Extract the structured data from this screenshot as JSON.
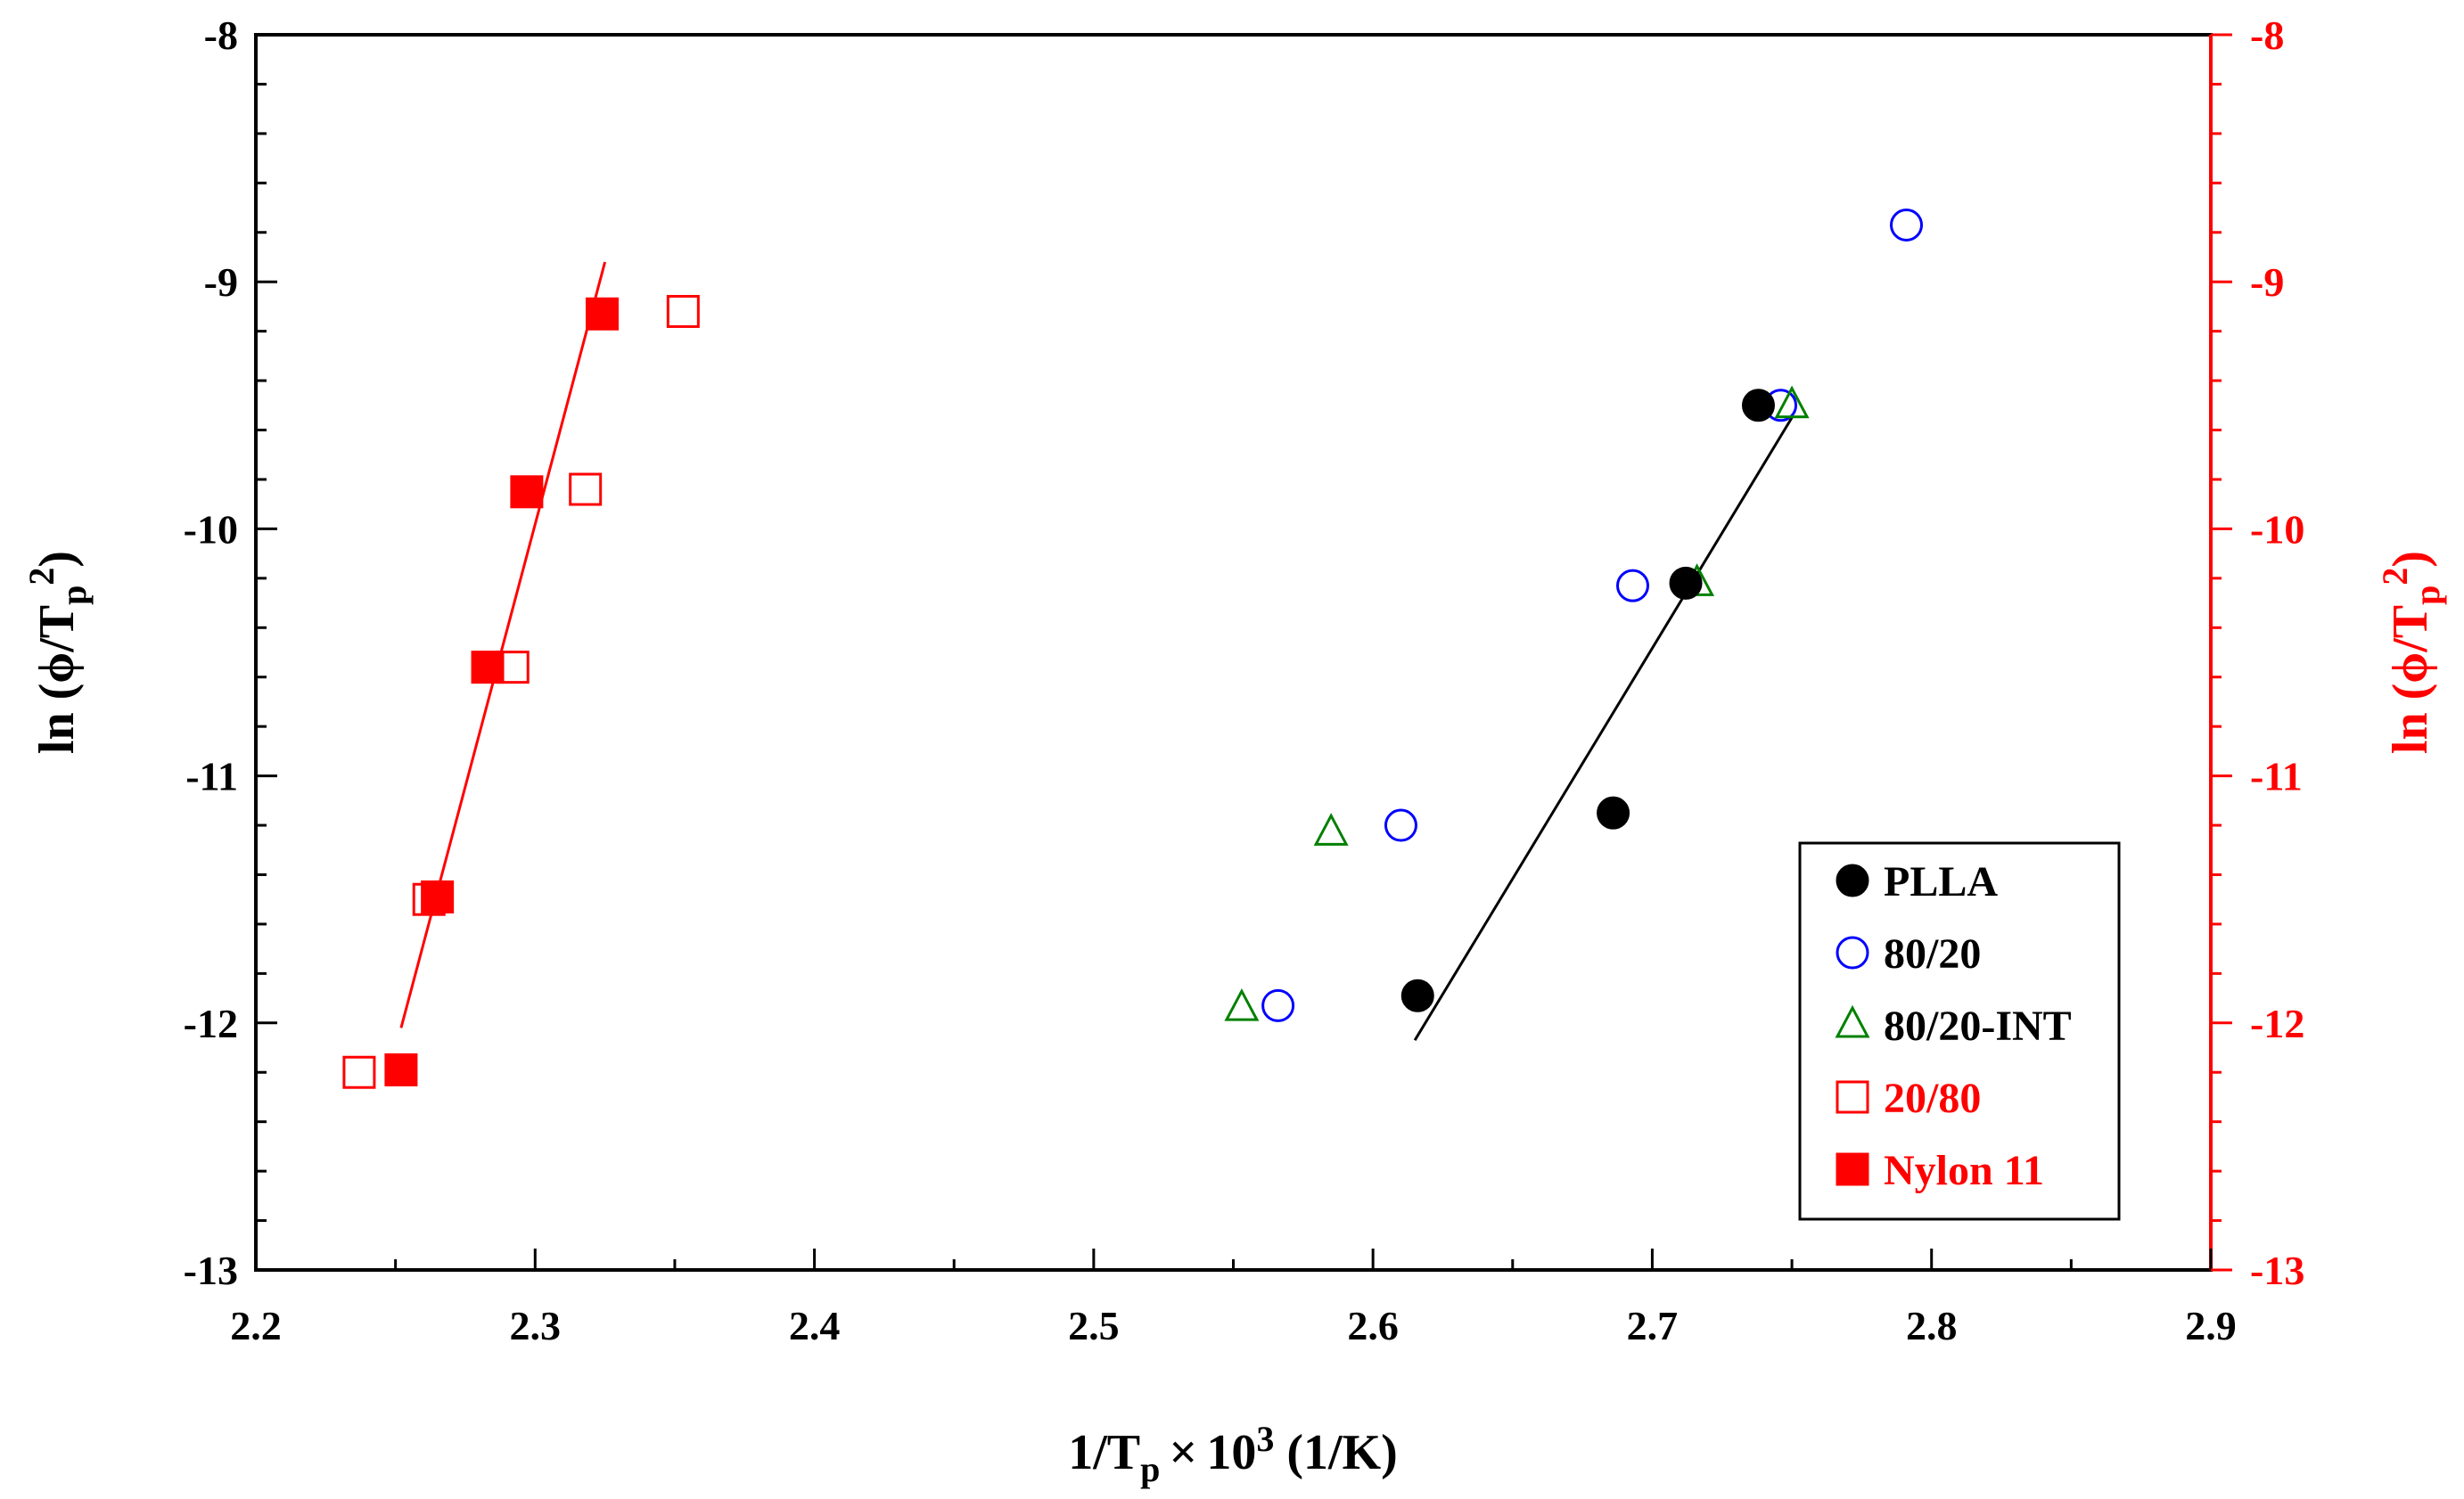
{
  "chart_data": {
    "type": "scatter",
    "title": "",
    "xlabel": "1/Tₚ × 10³ (1/K)",
    "xlabel_parts": {
      "main": "1/T",
      "sub": "p",
      "times": "×",
      "base": "10",
      "sup": "3",
      "unit": "(1/K)"
    },
    "ylabel_left": "ln (ϕ/Tₚ²)",
    "ylabel_right": "ln (ϕ/Tₚ²)",
    "ylabel_parts": {
      "pre": "ln (ϕ/T",
      "sub": "p",
      "sup": "2",
      "post": ")"
    },
    "xlim": [
      2.2,
      2.9
    ],
    "ylim": [
      -13,
      -8
    ],
    "x_ticks": [
      2.2,
      2.3,
      2.4,
      2.5,
      2.6,
      2.7,
      2.8,
      2.9
    ],
    "x_tick_labels": [
      "2.2",
      "2.3",
      "2.4",
      "2.5",
      "2.6",
      "2.7",
      "2.8",
      "2.9"
    ],
    "y_ticks": [
      -13,
      -12,
      -11,
      -10,
      -9,
      -8
    ],
    "y_tick_labels": [
      "-13",
      "-12",
      "-11",
      "-10",
      "-9",
      "-8"
    ],
    "y_minor_step": 0.2,
    "x_minor_step": 0.05,
    "grid": false,
    "legend_position": "bottom-right",
    "colors": {
      "black": "#000000",
      "blue": "#0000ff",
      "green": "#008000",
      "red": "#ff0000"
    },
    "series": [
      {
        "name": "PLLA",
        "marker": "circle",
        "filled": true,
        "color": "#000000",
        "label_color": "#000000",
        "x": [
          2.616,
          2.686,
          2.712,
          2.738
        ],
        "y": [
          -11.89,
          -11.15,
          -10.22,
          -9.5
        ]
      },
      {
        "name": "80/20",
        "marker": "circle",
        "filled": false,
        "color": "#0000ff",
        "label_color": "#000000",
        "x": [
          2.566,
          2.61,
          2.693,
          2.746,
          2.791
        ],
        "y": [
          -11.93,
          -11.2,
          -10.23,
          -9.5,
          -8.77
        ]
      },
      {
        "name": "80/20-INT",
        "marker": "triangle",
        "filled": false,
        "color": "#008000",
        "label_color": "#000000",
        "x": [
          2.553,
          2.585,
          2.716,
          2.75
        ],
        "y": [
          -11.94,
          -11.23,
          -10.22,
          -9.5
        ]
      },
      {
        "name": "20/80",
        "marker": "square",
        "filled": false,
        "color": "#ff0000",
        "label_color": "#ff0000",
        "x": [
          2.237,
          2.262,
          2.292,
          2.318,
          2.353
        ],
        "y": [
          -12.2,
          -11.5,
          -10.56,
          -9.84,
          -9.12
        ]
      },
      {
        "name": "Nylon 11",
        "marker": "square",
        "filled": true,
        "color": "#ff0000",
        "label_color": "#ff0000",
        "x": [
          2.252,
          2.265,
          2.283,
          2.297,
          2.324
        ],
        "y": [
          -12.19,
          -11.49,
          -10.56,
          -9.85,
          -9.13
        ]
      }
    ],
    "fit_lines": [
      {
        "name": "PLLA fit",
        "color": "#000000",
        "x": [
          2.615,
          2.75
        ],
        "y": [
          -12.07,
          -9.55
        ]
      },
      {
        "name": "Nylon 11 fit",
        "color": "#ff0000",
        "x": [
          2.252,
          2.325
        ],
        "y": [
          -12.02,
          -8.92
        ]
      }
    ]
  }
}
